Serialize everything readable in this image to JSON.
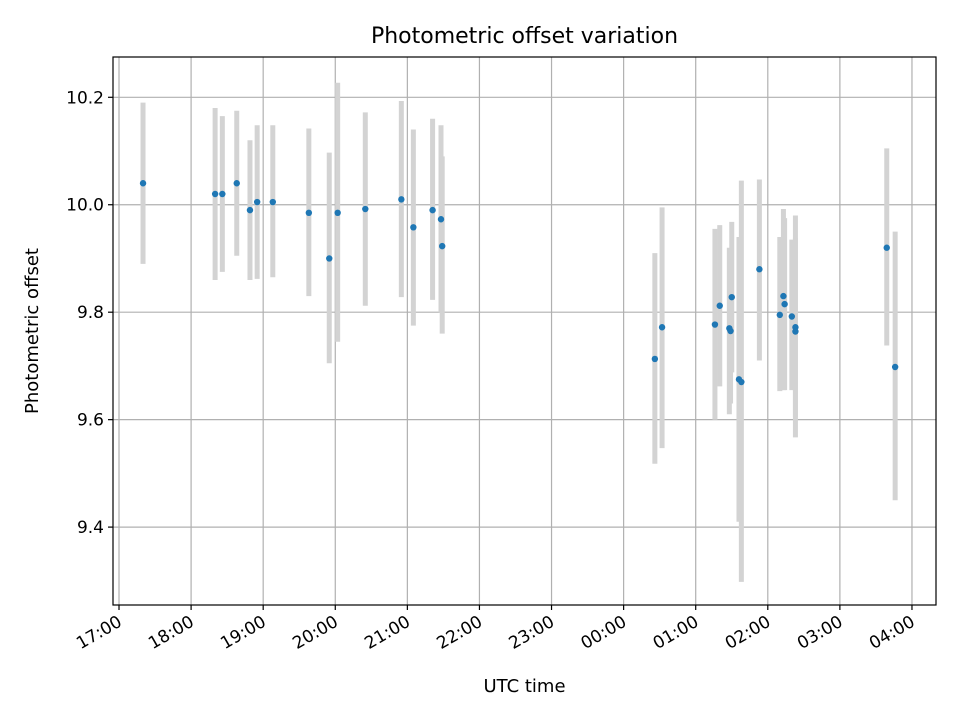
{
  "chart_data": {
    "type": "scatter",
    "title": "Photometric offset variation",
    "xlabel": "UTC time",
    "ylabel": "Photometric offset",
    "grid": true,
    "legend": "none",
    "xlim": [
      "16:55",
      "04:20"
    ],
    "ylim": [
      9.255,
      10.275
    ],
    "x_ticks": [
      "17:00",
      "18:00",
      "19:00",
      "20:00",
      "21:00",
      "22:00",
      "23:00",
      "00:00",
      "01:00",
      "02:00",
      "03:00",
      "04:00"
    ],
    "y_ticks": [
      9.4,
      9.6,
      9.8,
      10.0,
      10.2
    ],
    "colors": {
      "point": "#1f77b4",
      "errorbar": "#d3d3d3",
      "grid": "#b0b0b0"
    },
    "points": [
      {
        "time": "17:20",
        "y": 10.04,
        "ylow": 9.89,
        "yhigh": 10.19
      },
      {
        "time": "18:20",
        "y": 10.02,
        "ylow": 9.86,
        "yhigh": 10.18
      },
      {
        "time": "18:26",
        "y": 10.02,
        "ylow": 9.875,
        "yhigh": 10.165
      },
      {
        "time": "18:38",
        "y": 10.04,
        "ylow": 9.905,
        "yhigh": 10.175
      },
      {
        "time": "18:49",
        "y": 9.99,
        "ylow": 9.86,
        "yhigh": 10.12
      },
      {
        "time": "18:55",
        "y": 10.005,
        "ylow": 9.862,
        "yhigh": 10.148
      },
      {
        "time": "19:08",
        "y": 10.005,
        "ylow": 9.865,
        "yhigh": 10.148
      },
      {
        "time": "19:38",
        "y": 9.985,
        "ylow": 9.83,
        "yhigh": 10.142
      },
      {
        "time": "19:55",
        "y": 9.9,
        "ylow": 9.705,
        "yhigh": 10.097
      },
      {
        "time": "20:02",
        "y": 9.985,
        "ylow": 9.745,
        "yhigh": 10.227
      },
      {
        "time": "20:25",
        "y": 9.992,
        "ylow": 9.812,
        "yhigh": 10.172
      },
      {
        "time": "20:55",
        "y": 10.01,
        "ylow": 9.828,
        "yhigh": 10.193
      },
      {
        "time": "21:05",
        "y": 9.958,
        "ylow": 9.775,
        "yhigh": 10.14
      },
      {
        "time": "21:21",
        "y": 9.99,
        "ylow": 9.823,
        "yhigh": 10.16
      },
      {
        "time": "21:28",
        "y": 9.973,
        "ylow": 9.8,
        "yhigh": 10.148
      },
      {
        "time": "21:29",
        "y": 9.923,
        "ylow": 9.76,
        "yhigh": 10.09
      },
      {
        "time": "00:26",
        "y": 9.713,
        "ylow": 9.518,
        "yhigh": 9.91
      },
      {
        "time": "00:32",
        "y": 9.772,
        "ylow": 9.547,
        "yhigh": 9.995
      },
      {
        "time": "01:16",
        "y": 9.777,
        "ylow": 9.6,
        "yhigh": 9.955
      },
      {
        "time": "01:20",
        "y": 9.812,
        "ylow": 9.662,
        "yhigh": 9.962
      },
      {
        "time": "01:28",
        "y": 9.77,
        "ylow": 9.61,
        "yhigh": 9.92
      },
      {
        "time": "01:29",
        "y": 9.765,
        "ylow": 9.63,
        "yhigh": 9.9
      },
      {
        "time": "01:30",
        "y": 9.828,
        "ylow": 9.688,
        "yhigh": 9.968
      },
      {
        "time": "01:36",
        "y": 9.675,
        "ylow": 9.41,
        "yhigh": 9.94
      },
      {
        "time": "01:38",
        "y": 9.67,
        "ylow": 9.298,
        "yhigh": 10.045
      },
      {
        "time": "01:53",
        "y": 9.88,
        "ylow": 9.71,
        "yhigh": 10.047
      },
      {
        "time": "02:10",
        "y": 9.795,
        "ylow": 9.653,
        "yhigh": 9.94
      },
      {
        "time": "02:13",
        "y": 9.83,
        "ylow": 9.655,
        "yhigh": 9.992
      },
      {
        "time": "02:14",
        "y": 9.815,
        "ylow": 9.655,
        "yhigh": 9.975
      },
      {
        "time": "02:20",
        "y": 9.792,
        "ylow": 9.655,
        "yhigh": 9.935
      },
      {
        "time": "02:23",
        "y": 9.772,
        "ylow": 9.605,
        "yhigh": 9.938
      },
      {
        "time": "02:23",
        "y": 9.764,
        "ylow": 9.567,
        "yhigh": 9.98
      },
      {
        "time": "03:39",
        "y": 9.92,
        "ylow": 9.738,
        "yhigh": 10.105
      },
      {
        "time": "03:46",
        "y": 9.698,
        "ylow": 9.45,
        "yhigh": 9.95
      }
    ]
  }
}
